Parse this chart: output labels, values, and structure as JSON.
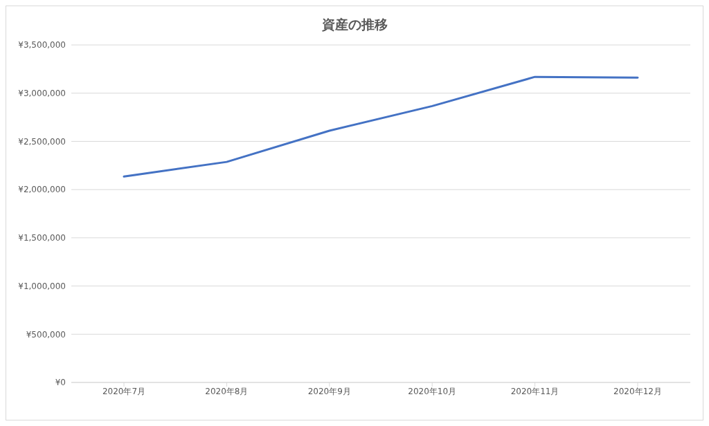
{
  "chart_data": {
    "type": "line",
    "title": "資産の推移",
    "categories": [
      "2020年7月",
      "2020年8月",
      "2020年9月",
      "2020年10月",
      "2020年11月",
      "2020年12月"
    ],
    "series": [
      {
        "color": "#4472c4",
        "values": [
          2135000,
          2287000,
          2611000,
          2866000,
          3169000,
          3162000
        ]
      }
    ],
    "ylim": [
      0,
      3500000
    ],
    "yticks": [
      {
        "value": 0,
        "label": "¥0"
      },
      {
        "value": 500000,
        "label": "¥500,000"
      },
      {
        "value": 1000000,
        "label": "¥1,000,000"
      },
      {
        "value": 1500000,
        "label": "¥1,500,000"
      },
      {
        "value": 2000000,
        "label": "¥2,000,000"
      },
      {
        "value": 2500000,
        "label": "¥2,500,000"
      },
      {
        "value": 3000000,
        "label": "¥3,000,000"
      },
      {
        "value": 3500000,
        "label": "¥3,500,000"
      }
    ],
    "grid": "y",
    "legend": false,
    "marker": "none",
    "line_style": "solid"
  }
}
